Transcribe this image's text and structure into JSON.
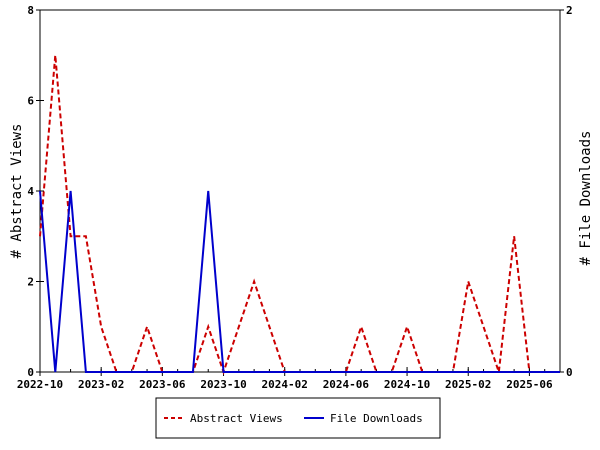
{
  "chart_data": {
    "type": "line",
    "x": [
      "2022-10",
      "2022-11",
      "2022-12",
      "2023-01",
      "2023-02",
      "2023-03",
      "2023-04",
      "2023-05",
      "2023-06",
      "2023-07",
      "2023-08",
      "2023-09",
      "2023-10",
      "2023-11",
      "2023-12",
      "2024-01",
      "2024-02",
      "2024-03",
      "2024-04",
      "2024-05",
      "2024-06",
      "2024-07",
      "2024-08",
      "2024-09",
      "2024-10",
      "2024-11",
      "2024-12",
      "2025-01",
      "2025-02",
      "2025-03",
      "2025-04",
      "2025-05",
      "2025-06",
      "2025-07",
      "2025-08"
    ],
    "x_tick_labels": [
      "2022-10",
      "2023-02",
      "2023-06",
      "2023-10",
      "2024-02",
      "2024-06",
      "2024-10",
      "2025-02",
      "2025-06"
    ],
    "x_tick_indices": [
      0,
      4,
      8,
      12,
      16,
      20,
      24,
      28,
      32
    ],
    "y_left": {
      "label": "# Abstract Views",
      "min": 0,
      "max": 8,
      "ticks": [
        0,
        2,
        4,
        6,
        8
      ]
    },
    "y_right": {
      "label": "# File Downloads",
      "min": 0,
      "max": 2,
      "ticks": [
        0,
        2
      ]
    },
    "series": [
      {
        "name": "Abstract Views",
        "axis": "left",
        "color": "#cc0000",
        "dash": "dashed",
        "values": [
          3,
          7,
          3,
          3,
          1,
          0,
          0,
          1,
          0,
          0,
          0,
          1,
          0,
          1,
          2,
          1,
          0,
          0,
          0,
          0,
          0,
          1,
          0,
          0,
          1,
          0,
          0,
          0,
          2,
          1,
          0,
          3,
          0,
          0,
          0
        ]
      },
      {
        "name": "File Downloads",
        "axis": "right",
        "color": "#0000cc",
        "dash": "solid",
        "values": [
          1,
          0,
          1,
          0,
          0,
          0,
          0,
          0,
          0,
          0,
          0,
          1,
          0,
          0,
          0,
          0,
          0,
          0,
          0,
          0,
          0,
          0,
          0,
          0,
          0,
          0,
          0,
          0,
          0,
          0,
          0,
          0,
          0,
          0,
          0
        ]
      }
    ],
    "grid": false,
    "legend_position": "bottom-center"
  }
}
